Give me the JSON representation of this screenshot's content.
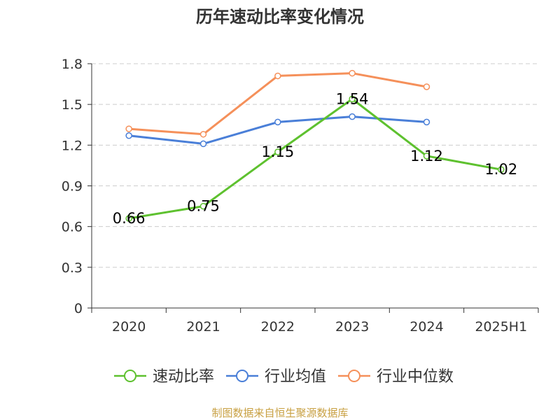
{
  "chart_data": {
    "type": "line",
    "title": "历年速动比率变化情况",
    "categories": [
      "2020",
      "2021",
      "2022",
      "2023",
      "2024",
      "2025H1"
    ],
    "ylim": [
      0,
      1.8
    ],
    "yticks": [
      "0",
      "0.3",
      "0.6",
      "0.9",
      "1.2",
      "1.5",
      "1.8"
    ],
    "grid": true,
    "legend_position": "bottom",
    "series": [
      {
        "name": "速动比率",
        "color": "#5ec12f",
        "values": [
          0.66,
          0.75,
          1.15,
          1.54,
          1.12,
          1.02
        ],
        "labels": [
          "0.66",
          "0.75",
          "1.15",
          "1.54",
          "1.12",
          "1.02"
        ]
      },
      {
        "name": "行业均值",
        "color": "#4a7fd8",
        "values": [
          1.27,
          1.21,
          1.37,
          1.41,
          1.37,
          null
        ]
      },
      {
        "name": "行业中位数",
        "color": "#f5905a",
        "values": [
          1.32,
          1.28,
          1.71,
          1.73,
          1.63,
          null
        ]
      }
    ]
  },
  "source_text": "制图数据来自恒生聚源数据库",
  "colors": {
    "grid": "#cccccc",
    "axis": "#333333",
    "source": "#c8a042"
  }
}
